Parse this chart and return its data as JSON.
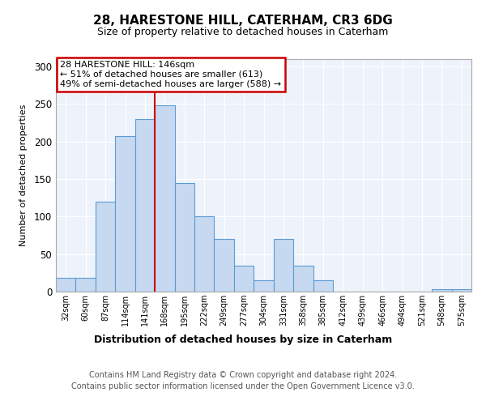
{
  "title": "28, HARESTONE HILL, CATERHAM, CR3 6DG",
  "subtitle": "Size of property relative to detached houses in Caterham",
  "xlabel": "Distribution of detached houses by size in Caterham",
  "ylabel": "Number of detached properties",
  "categories": [
    "32sqm",
    "60sqm",
    "87sqm",
    "114sqm",
    "141sqm",
    "168sqm",
    "195sqm",
    "222sqm",
    "249sqm",
    "277sqm",
    "304sqm",
    "331sqm",
    "358sqm",
    "385sqm",
    "412sqm",
    "439sqm",
    "466sqm",
    "494sqm",
    "521sqm",
    "548sqm",
    "575sqm"
  ],
  "values": [
    18,
    18,
    120,
    207,
    230,
    248,
    145,
    100,
    70,
    35,
    15,
    70,
    35,
    15,
    0,
    0,
    0,
    0,
    0,
    3,
    3
  ],
  "bar_color": "#c6d9f0",
  "bar_edge_color": "#5b9bd5",
  "red_line_color": "#cc0000",
  "red_line_x": 4.5,
  "annotation_text": "28 HARESTONE HILL: 146sqm\n← 51% of detached houses are smaller (613)\n49% of semi-detached houses are larger (588) →",
  "annotation_box_color": "#ffffff",
  "annotation_box_edge": "#cc0000",
  "footer_text": "Contains HM Land Registry data © Crown copyright and database right 2024.\nContains public sector information licensed under the Open Government Licence v3.0.",
  "background_color": "#ffffff",
  "plot_bg_color": "#eef3fb",
  "grid_color": "#ffffff",
  "ylim": [
    0,
    310
  ],
  "yticks": [
    0,
    50,
    100,
    150,
    200,
    250,
    300
  ]
}
